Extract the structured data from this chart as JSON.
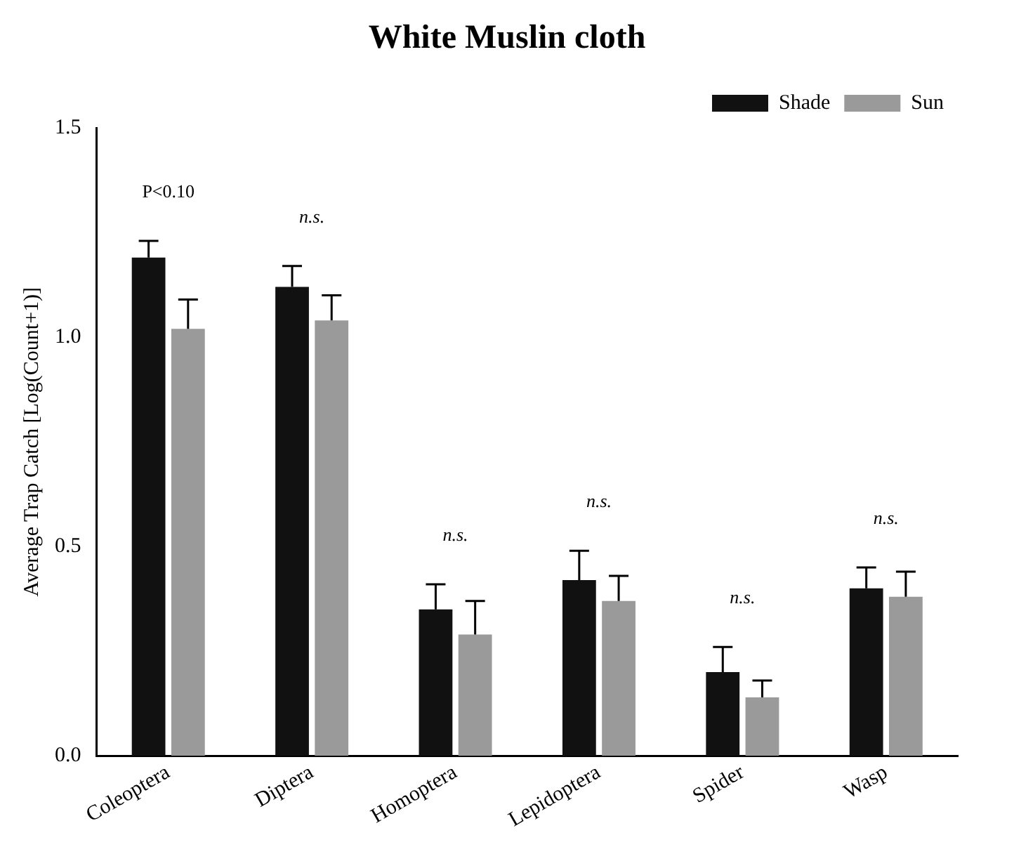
{
  "chart_data": {
    "type": "bar",
    "title": "White Muslin cloth",
    "ylabel": "Average Trap Catch [Log(Count+1)]",
    "categories": [
      "Coleoptera",
      "Diptera",
      "Homoptera",
      "Lepidoptera",
      "Spider",
      "Wasp"
    ],
    "series": [
      {
        "name": "Shade",
        "color": "#111111",
        "values": [
          1.19,
          1.12,
          0.35,
          0.42,
          0.2,
          0.4
        ],
        "errors": [
          0.04,
          0.05,
          0.06,
          0.07,
          0.06,
          0.05
        ]
      },
      {
        "name": "Sun",
        "color": "#9a9a9a",
        "values": [
          1.02,
          1.04,
          0.29,
          0.37,
          0.14,
          0.38
        ],
        "errors": [
          0.07,
          0.06,
          0.08,
          0.06,
          0.04,
          0.06
        ]
      }
    ],
    "ylim": [
      0,
      1.5
    ],
    "yticks": [
      {
        "value": 0,
        "label": "0.0"
      },
      {
        "value": 0.5,
        "label": "0.5"
      },
      {
        "value": 1,
        "label": "1.0"
      },
      {
        "value": 1.5,
        "label": "1.5"
      }
    ],
    "grid": false,
    "legend": "top right",
    "annotations": [
      "P<0.10",
      "n.s.",
      "n.s.",
      "n.s.",
      "n.s.",
      "n.s."
    ]
  }
}
